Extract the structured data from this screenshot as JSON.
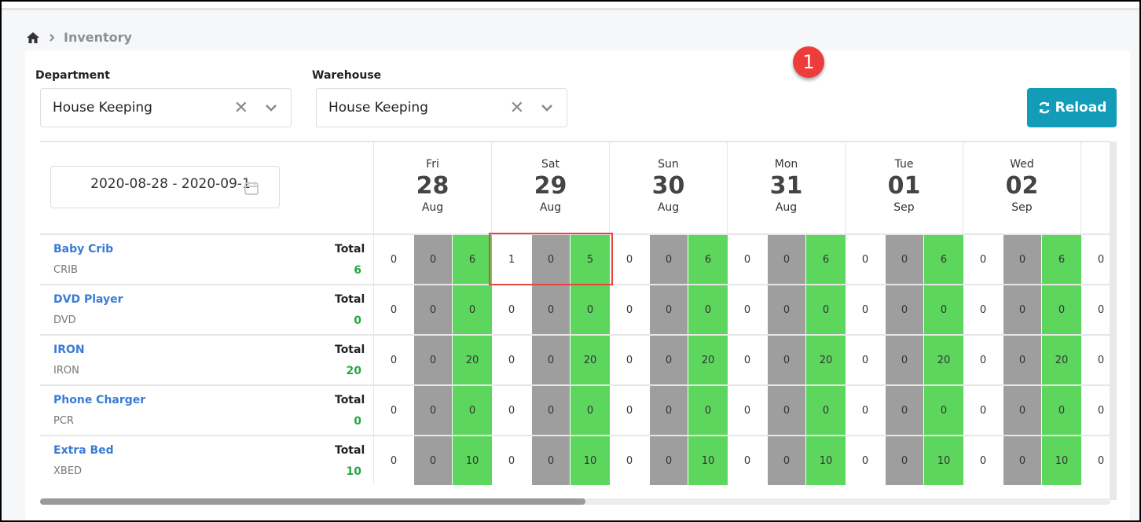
{
  "breadcrumb": {
    "home_icon": "home-icon",
    "current": "Inventory"
  },
  "filters": {
    "department": {
      "label": "Department",
      "value": "House Keeping"
    },
    "warehouse": {
      "label": "Warehouse",
      "value": "House Keeping"
    },
    "reload_label": "Reload"
  },
  "annotation_badge": "1",
  "date_range": "2020-08-28 - 2020-09-1",
  "days": [
    {
      "dow": "Fri",
      "day": "28",
      "month": "Aug"
    },
    {
      "dow": "Sat",
      "day": "29",
      "month": "Aug"
    },
    {
      "dow": "Sun",
      "day": "30",
      "month": "Aug"
    },
    {
      "dow": "Mon",
      "day": "31",
      "month": "Aug"
    },
    {
      "dow": "Tue",
      "day": "01",
      "month": "Sep"
    },
    {
      "dow": "Wed",
      "day": "02",
      "month": "Sep"
    }
  ],
  "total_label": "Total",
  "items": [
    {
      "name": "Baby Crib",
      "code": "CRIB",
      "total": "6",
      "cells": [
        [
          "0",
          "0",
          "6"
        ],
        [
          "1",
          "0",
          "5"
        ],
        [
          "0",
          "0",
          "6"
        ],
        [
          "0",
          "0",
          "6"
        ],
        [
          "0",
          "0",
          "6"
        ],
        [
          "0",
          "0",
          "6"
        ],
        [
          "0"
        ]
      ]
    },
    {
      "name": "DVD Player",
      "code": "DVD",
      "total": "0",
      "cells": [
        [
          "0",
          "0",
          "0"
        ],
        [
          "0",
          "0",
          "0"
        ],
        [
          "0",
          "0",
          "0"
        ],
        [
          "0",
          "0",
          "0"
        ],
        [
          "0",
          "0",
          "0"
        ],
        [
          "0",
          "0",
          "0"
        ],
        [
          "0"
        ]
      ]
    },
    {
      "name": "IRON",
      "code": "IRON",
      "total": "20",
      "cells": [
        [
          "0",
          "0",
          "20"
        ],
        [
          "0",
          "0",
          "20"
        ],
        [
          "0",
          "0",
          "20"
        ],
        [
          "0",
          "0",
          "20"
        ],
        [
          "0",
          "0",
          "20"
        ],
        [
          "0",
          "0",
          "20"
        ],
        [
          "0"
        ]
      ]
    },
    {
      "name": "Phone Charger",
      "code": "PCR",
      "total": "0",
      "cells": [
        [
          "0",
          "0",
          "0"
        ],
        [
          "0",
          "0",
          "0"
        ],
        [
          "0",
          "0",
          "0"
        ],
        [
          "0",
          "0",
          "0"
        ],
        [
          "0",
          "0",
          "0"
        ],
        [
          "0",
          "0",
          "0"
        ],
        [
          "0"
        ]
      ]
    },
    {
      "name": "Extra Bed",
      "code": "XBED",
      "total": "10",
      "cells": [
        [
          "0",
          "0",
          "10"
        ],
        [
          "0",
          "0",
          "10"
        ],
        [
          "0",
          "0",
          "10"
        ],
        [
          "0",
          "0",
          "10"
        ],
        [
          "0",
          "0",
          "10"
        ],
        [
          "0",
          "0",
          "10"
        ],
        [
          "0"
        ]
      ]
    }
  ],
  "colors": {
    "accent": "#129cb7",
    "booked": "#9e9e9e",
    "available": "#5cd65c",
    "link": "#3a7bd5",
    "highlight": "#e84545"
  }
}
